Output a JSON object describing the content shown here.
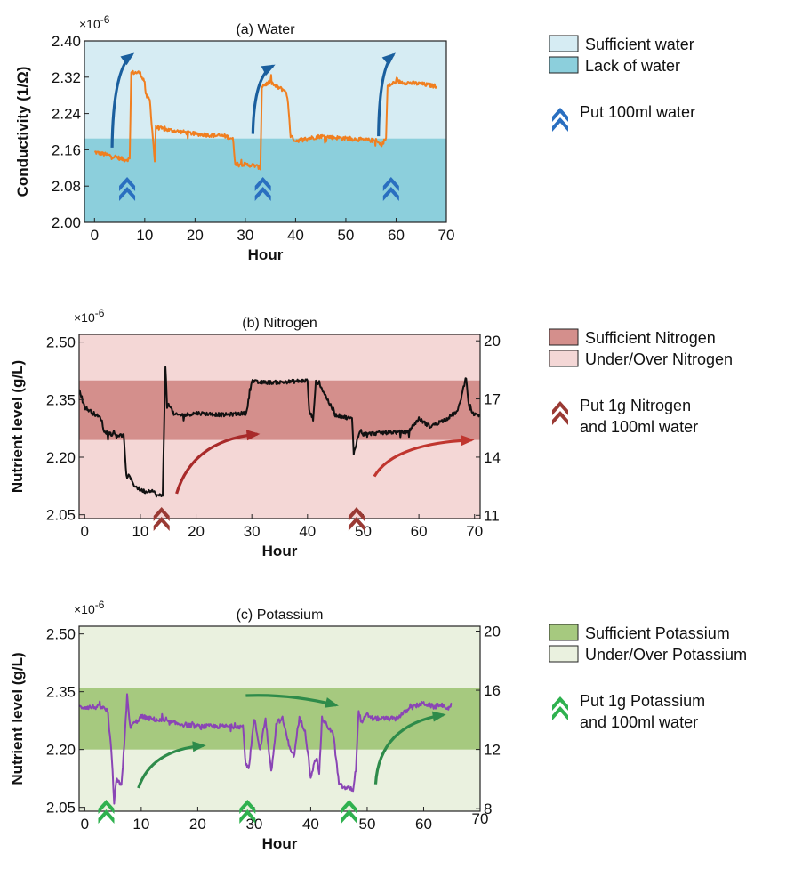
{
  "chart_data": [
    {
      "id": "water",
      "type": "line",
      "title": "(a) Water",
      "xlabel": "Hour",
      "ylabel": "Conductivity (1/Ω)",
      "y_multiplier": "×10",
      "y_multiplier_exp": "-6",
      "xlim": [
        -2,
        70
      ],
      "ylim": [
        2.0,
        2.4
      ],
      "xticks": [
        0,
        10,
        20,
        30,
        40,
        50,
        60,
        70
      ],
      "yticks": [
        2.0,
        2.08,
        2.16,
        2.24,
        2.32,
        2.4
      ],
      "ytick_labels": [
        "2.00",
        "2.08",
        "2.16",
        "2.24",
        "2.32",
        "2.40"
      ],
      "line_color": "#f07f20",
      "noise": 0.0045,
      "bands": [
        {
          "name": "Sufficient water",
          "y0": 2.185,
          "y1": 2.4,
          "color": "#d6ecf3"
        },
        {
          "name": "Lack of water",
          "y0": 2.0,
          "y1": 2.185,
          "color": "#8ccfdc"
        }
      ],
      "series": [
        {
          "x": [
            0,
            2,
            4,
            6,
            7,
            7.3,
            9,
            10,
            10.2,
            11,
            12,
            12.2,
            14,
            20,
            26,
            27.5,
            28,
            32,
            33,
            33.3,
            35,
            36,
            38,
            38.5,
            39,
            40,
            45,
            50,
            56,
            57,
            58,
            58.3,
            60,
            65,
            68
          ],
          "y": [
            2.155,
            2.15,
            2.145,
            2.138,
            2.14,
            2.33,
            2.33,
            2.31,
            2.28,
            2.27,
            2.135,
            2.21,
            2.205,
            2.195,
            2.19,
            2.185,
            2.13,
            2.125,
            2.12,
            2.3,
            2.31,
            2.3,
            2.29,
            2.265,
            2.19,
            2.18,
            2.19,
            2.185,
            2.18,
            2.17,
            2.185,
            2.3,
            2.31,
            2.305,
            2.3
          ]
        }
      ],
      "arrows": [
        {
          "x0": 3.5,
          "y0": 2.165,
          "x1": 7.5,
          "y1": 2.37,
          "color": "#1a5f9e"
        },
        {
          "x0": 31.5,
          "y0": 2.195,
          "x1": 35.5,
          "y1": 2.345,
          "color": "#1a5f9e"
        },
        {
          "x0": 56.5,
          "y0": 2.19,
          "x1": 59.5,
          "y1": 2.37,
          "color": "#1a5f9e"
        }
      ],
      "markers": [
        {
          "x": 6.5
        },
        {
          "x": 33.5
        },
        {
          "x": 59
        }
      ],
      "marker_color": "#2a6fc0",
      "legend": {
        "bands": [
          "Sufficient water",
          "Lack of water"
        ],
        "marker_label": [
          "Put 100ml water"
        ]
      }
    },
    {
      "id": "nitrogen",
      "type": "line",
      "title": "(b) Nitrogen",
      "xlabel": "Hour",
      "ylabel": "Nutrient level (g/L)",
      "y_multiplier": "×10",
      "y_multiplier_exp": "-6",
      "xlim": [
        -1,
        71
      ],
      "ylim": [
        2.04,
        2.52
      ],
      "xticks": [
        0,
        10,
        20,
        30,
        40,
        50,
        60,
        70
      ],
      "yticks": [
        2.05,
        2.2,
        2.35,
        2.5
      ],
      "ytick_labels": [
        "2.05",
        "2.20",
        "2.35",
        "2.50"
      ],
      "y2lim": [
        10.83,
        20.33
      ],
      "y2ticks": [
        11,
        14,
        17,
        20
      ],
      "line_color": "#111111",
      "noise": 0.005,
      "bands": [
        {
          "name": "Under/Over Nitrogen",
          "y0": 2.04,
          "y1": 2.52,
          "color": "#f4d7d6"
        },
        {
          "name": "Sufficient Nitrogen",
          "y0": 2.245,
          "y1": 2.4,
          "color": "#d48f8c"
        }
      ],
      "series": [
        {
          "x": [
            -1,
            0,
            2,
            3,
            3.5,
            5,
            7,
            7.5,
            8,
            9,
            10,
            11,
            12,
            13,
            14,
            14.5,
            14.8,
            15.2,
            16,
            18,
            20,
            25,
            29,
            30,
            31,
            35,
            40,
            40.3,
            41,
            41.5,
            42,
            45,
            48,
            48.3,
            49,
            49.5,
            50,
            55,
            58,
            60,
            62,
            65,
            67,
            68.5,
            69,
            70,
            71
          ],
          "y": [
            2.38,
            2.33,
            2.31,
            2.3,
            2.265,
            2.26,
            2.255,
            2.15,
            2.15,
            2.125,
            2.115,
            2.11,
            2.115,
            2.1,
            2.1,
            2.44,
            2.33,
            2.34,
            2.31,
            2.31,
            2.315,
            2.31,
            2.315,
            2.4,
            2.395,
            2.395,
            2.4,
            2.32,
            2.3,
            2.395,
            2.395,
            2.31,
            2.3,
            2.21,
            2.25,
            2.27,
            2.26,
            2.265,
            2.265,
            2.3,
            2.28,
            2.3,
            2.32,
            2.41,
            2.33,
            2.31,
            2.31
          ]
        }
      ],
      "arrows": [
        {
          "x0": 16.5,
          "y0": 2.105,
          "x1": 31,
          "y1": 2.26,
          "color": "#a82a2a"
        },
        {
          "x0": 52,
          "y0": 2.15,
          "x1": 69.5,
          "y1": 2.245,
          "color": "#c0362f"
        }
      ],
      "markers": [
        {
          "x": 13.8
        },
        {
          "x": 48.8
        }
      ],
      "marker_color": "#9a3a34",
      "legend": {
        "bands": [
          "Sufficient Nitrogen",
          "Under/Over Nitrogen"
        ],
        "marker_label": [
          "Put 1g Nitrogen",
          "and 100ml water"
        ]
      }
    },
    {
      "id": "potassium",
      "type": "line",
      "title": "(c) Potassium",
      "xlabel": "Hour",
      "ylabel": "Nutrient level (g/L)",
      "y_multiplier": "×10",
      "y_multiplier_exp": "-6",
      "xlim": [
        -1,
        70
      ],
      "ylim": [
        2.04,
        2.52
      ],
      "xticks": [
        0,
        10,
        20,
        30,
        40,
        50,
        60,
        70
      ],
      "yticks": [
        2.05,
        2.2,
        2.35,
        2.5
      ],
      "ytick_labels": [
        "2.05",
        "2.20",
        "2.35",
        "2.50"
      ],
      "y2lim": [
        7.83,
        20.33
      ],
      "y2ticks": [
        8,
        12,
        16,
        20
      ],
      "line_color": "#8a45b5",
      "noise": 0.006,
      "bands": [
        {
          "name": "Under/Over Potassium",
          "y0": 2.04,
          "y1": 2.52,
          "color": "#eaf1df"
        },
        {
          "name": "Sufficient Potassium",
          "y0": 2.2,
          "y1": 2.36,
          "color": "#a6c97f"
        }
      ],
      "series": [
        {
          "x": [
            -1,
            1,
            3,
            4,
            4.8,
            5.2,
            5.6,
            6.5,
            7,
            7.5,
            8,
            9,
            10,
            15,
            20,
            25,
            28,
            28.5,
            29,
            30,
            31,
            32,
            33,
            34,
            35,
            36,
            37,
            38,
            39,
            40,
            41,
            41.5,
            42,
            44,
            45,
            46,
            47,
            47.5,
            48,
            48.5,
            49,
            50,
            51,
            55,
            58,
            60,
            62,
            63,
            64,
            65
          ],
          "y": [
            2.31,
            2.31,
            2.31,
            2.3,
            2.18,
            2.06,
            2.12,
            2.11,
            2.21,
            2.34,
            2.26,
            2.27,
            2.285,
            2.27,
            2.26,
            2.26,
            2.26,
            2.16,
            2.15,
            2.28,
            2.2,
            2.28,
            2.14,
            2.27,
            2.28,
            2.22,
            2.18,
            2.28,
            2.25,
            2.13,
            2.18,
            2.14,
            2.28,
            2.24,
            2.11,
            2.1,
            2.1,
            2.095,
            2.15,
            2.3,
            2.27,
            2.29,
            2.28,
            2.28,
            2.31,
            2.32,
            2.31,
            2.32,
            2.3,
            2.32
          ]
        }
      ],
      "arrows": [
        {
          "x0": 9.5,
          "y0": 2.1,
          "x1": 21,
          "y1": 2.21,
          "color": "#2e8b4a"
        },
        {
          "x0": 28.5,
          "y0": 2.34,
          "x1": 44.5,
          "y1": 2.315,
          "color": "#2e8b4a"
        },
        {
          "x0": 51.5,
          "y0": 2.11,
          "x1": 63.5,
          "y1": 2.29,
          "color": "#2e8b4a"
        }
      ],
      "markers": [
        {
          "x": 3.8
        },
        {
          "x": 28.8
        },
        {
          "x": 46.8
        }
      ],
      "marker_color": "#2fb14f",
      "legend": {
        "bands": [
          "Sufficient Potassium",
          "Under/Over Potassium"
        ],
        "marker_label": [
          "Put 1g Potassium",
          "and 100ml water"
        ]
      }
    }
  ]
}
